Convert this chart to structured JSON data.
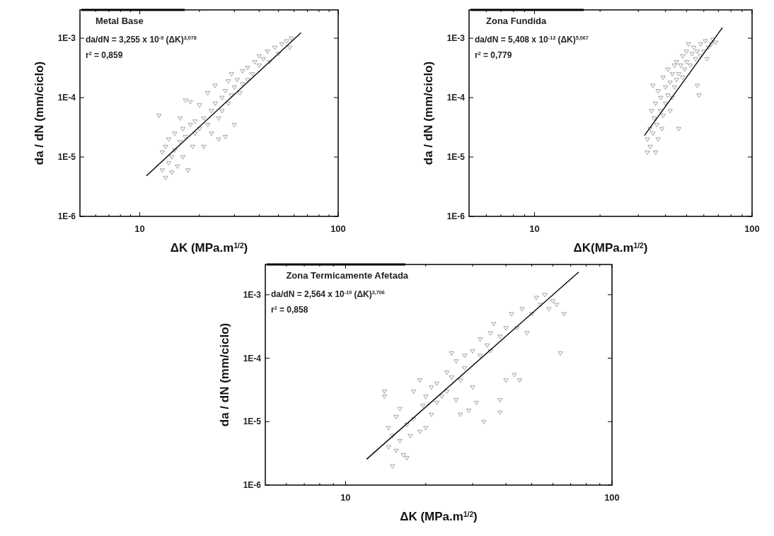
{
  "chart_data": [
    {
      "type": "scatter",
      "title": "Metal Base",
      "xlabel": "ΔK (MPa.m$^{1/2}$)",
      "ylabel": "da / dN (mm/ciclo)",
      "annotations": [
        "da/dN = 3,255 x 10$^{-9}$ (ΔK)$^{3,078}$",
        "r$^{2}$ = 0,859"
      ],
      "log": "xy",
      "marker": "triangle",
      "xlim": [
        5,
        100
      ],
      "xticks": [
        {
          "value": 6,
          "label": null
        },
        {
          "value": 7,
          "label": null
        },
        {
          "value": 8,
          "label": null
        },
        {
          "value": 9,
          "label": null
        },
        {
          "value": 10,
          "label": "10"
        },
        {
          "value": 20,
          "label": null
        },
        {
          "value": 30,
          "label": null
        },
        {
          "value": 40,
          "label": null
        },
        {
          "value": 50,
          "label": null
        },
        {
          "value": 60,
          "label": null
        },
        {
          "value": 70,
          "label": null
        },
        {
          "value": 80,
          "label": null
        },
        {
          "value": 90,
          "label": null
        },
        {
          "value": 100,
          "label": "100"
        }
      ],
      "ylim": [
        1e-06,
        0.003
      ],
      "yticks": [
        {
          "value": 1e-06,
          "label": "1E-6"
        },
        {
          "value": 1e-05,
          "label": "1E-5"
        },
        {
          "value": 0.0001,
          "label": "1E-4"
        },
        {
          "value": 0.001,
          "label": "1E-3"
        }
      ],
      "series": [
        {
          "type": "scatter",
          "color": "#8c8c8c",
          "x": [
            12.5,
            13,
            13,
            13.5,
            13.5,
            14,
            14,
            14.5,
            14.5,
            15,
            15,
            15.5,
            16,
            16,
            16.5,
            16.5,
            17,
            17,
            17.5,
            18,
            18,
            18.5,
            19,
            19,
            20,
            20,
            21,
            21,
            22,
            22,
            23,
            23,
            24,
            24,
            25,
            25,
            26,
            26,
            27,
            27,
            28,
            28,
            29,
            29,
            30,
            30,
            31,
            32,
            33,
            33,
            35,
            35,
            37,
            38,
            40,
            40,
            42,
            44,
            45,
            48,
            50,
            52,
            55,
            57,
            58
          ],
          "values": [
            5e-05,
            1.2e-05,
            6e-06,
            4.5e-06,
            1.5e-05,
            8e-06,
            2e-05,
            1e-05,
            5.5e-06,
            2.5e-05,
            1.3e-05,
            7e-06,
            4.5e-05,
            1.8e-05,
            3e-05,
            1e-05,
            9e-05,
            2.2e-05,
            6e-06,
            8.5e-05,
            3.5e-05,
            1.5e-05,
            4e-05,
            2.5e-05,
            7.5e-05,
            3e-05,
            1.5e-05,
            4.5e-05,
            3.5e-05,
            0.00012,
            6e-05,
            2.5e-05,
            0.00016,
            8e-05,
            4.5e-05,
            2e-05,
            0.0001,
            6e-05,
            0.00013,
            2.2e-05,
            8e-05,
            0.00019,
            0.00025,
            0.00011,
            0.00015,
            3.5e-05,
            0.0002,
            0.00012,
            0.00028,
            0.00017,
            0.00032,
            0.0002,
            0.00025,
            0.0004,
            0.00035,
            0.0005,
            0.00045,
            0.0006,
            0.0004,
            0.0007,
            0.00055,
            0.0008,
            0.0009,
            0.0007,
            0.001
          ]
        },
        {
          "type": "line",
          "color": "#000000",
          "marker": "none",
          "x": [
            10.8,
            65
          ],
          "values": [
            4.8e-06,
            0.00124
          ]
        }
      ]
    },
    {
      "type": "scatter",
      "title": "Zona Fundida",
      "xlabel": "ΔK(MPa.m$^{1/2}$)",
      "ylabel": "da / dN (mm/ciclo)",
      "annotations": [
        "da/dN = 5,408 x 10$^{-13}$ (ΔK)$^{5,067}$",
        "r$^{2}$ = 0,779"
      ],
      "log": "xy",
      "marker": "triangle",
      "xlim": [
        5,
        100
      ],
      "xticks": [
        {
          "value": 6,
          "label": null
        },
        {
          "value": 7,
          "label": null
        },
        {
          "value": 8,
          "label": null
        },
        {
          "value": 9,
          "label": null
        },
        {
          "value": 10,
          "label": "10"
        },
        {
          "value": 20,
          "label": null
        },
        {
          "value": 30,
          "label": null
        },
        {
          "value": 40,
          "label": null
        },
        {
          "value": 50,
          "label": null
        },
        {
          "value": 60,
          "label": null
        },
        {
          "value": 70,
          "label": null
        },
        {
          "value": 80,
          "label": null
        },
        {
          "value": 90,
          "label": null
        },
        {
          "value": 100,
          "label": "100"
        }
      ],
      "ylim": [
        1e-06,
        0.003
      ],
      "yticks": [
        {
          "value": 1e-06,
          "label": "1E-6"
        },
        {
          "value": 1e-05,
          "label": "1E-5"
        },
        {
          "value": 0.0001,
          "label": "1E-4"
        },
        {
          "value": 0.001,
          "label": "1E-3"
        }
      ],
      "series": [
        {
          "type": "scatter",
          "color": "#8c8c8c",
          "x": [
            33,
            33,
            34,
            34,
            34.5,
            35,
            35,
            35.5,
            36,
            36,
            36.5,
            37,
            37,
            38,
            38,
            38.5,
            39,
            39,
            40,
            40,
            41,
            41,
            42,
            42,
            43,
            43,
            44,
            44,
            45,
            45,
            46,
            46,
            47,
            48,
            48,
            49,
            50,
            50,
            51,
            52,
            53,
            54,
            55,
            56,
            56,
            57,
            58,
            58,
            60,
            61,
            62,
            63,
            65,
            66,
            68
          ],
          "values": [
            1.2e-05,
            2e-05,
            1.5e-05,
            3e-05,
            6e-05,
            0.00016,
            2.5e-05,
            4.5e-05,
            1.2e-05,
            8e-05,
            3.5e-05,
            0.00013,
            2e-05,
            6e-05,
            0.0001,
            3e-05,
            0.00022,
            5e-05,
            0.00015,
            8e-05,
            0.0003,
            0.00011,
            0.00018,
            6e-05,
            0.00025,
            0.0001,
            0.00035,
            0.00015,
            0.0002,
            0.0004,
            0.00025,
            3e-05,
            0.00035,
            0.0005,
            0.00022,
            0.0003,
            0.0006,
            0.0004,
            0.0008,
            0.00035,
            0.00055,
            0.0007,
            0.00045,
            0.00016,
            0.0006,
            0.00011,
            0.0008,
            0.0005,
            0.0006,
            0.0009,
            0.00045,
            0.0007,
            0.0008,
            0.00095,
            0.00085
          ]
        },
        {
          "type": "line",
          "color": "#000000",
          "marker": "none",
          "x": [
            32,
            73
          ],
          "values": [
            2.3e-05,
            0.0015
          ]
        }
      ]
    },
    {
      "type": "scatter",
      "title": "Zona Termicamente Afetada",
      "xlabel": "ΔK (MPa.m$^{1/2}$)",
      "ylabel": "da / dN (mm/ciclo)",
      "annotations": [
        "da/dN = 2,564 x 10$^{-10}$ (ΔK)$^{3,706}$",
        "r$^{2}$ = 0,858"
      ],
      "log": "xy",
      "marker": "triangle",
      "xlim": [
        5,
        100
      ],
      "xticks": [
        {
          "value": 6,
          "label": null
        },
        {
          "value": 7,
          "label": null
        },
        {
          "value": 8,
          "label": null
        },
        {
          "value": 9,
          "label": null
        },
        {
          "value": 10,
          "label": "10"
        },
        {
          "value": 20,
          "label": null
        },
        {
          "value": 30,
          "label": null
        },
        {
          "value": 40,
          "label": null
        },
        {
          "value": 50,
          "label": null
        },
        {
          "value": 60,
          "label": null
        },
        {
          "value": 70,
          "label": null
        },
        {
          "value": 80,
          "label": null
        },
        {
          "value": 90,
          "label": null
        },
        {
          "value": 100,
          "label": "100"
        }
      ],
      "ylim": [
        1e-06,
        0.003
      ],
      "yticks": [
        {
          "value": 1e-06,
          "label": "1E-6"
        },
        {
          "value": 1e-05,
          "label": "1E-5"
        },
        {
          "value": 0.0001,
          "label": "1E-4"
        },
        {
          "value": 0.001,
          "label": "1E-3"
        }
      ],
      "series": [
        {
          "type": "scatter",
          "color": "#8c8c8c",
          "x": [
            14,
            14,
            14.5,
            14.5,
            15,
            15,
            15.5,
            15.5,
            16,
            16,
            16.5,
            17,
            17,
            17.5,
            18,
            18,
            19,
            19,
            19.5,
            20,
            20,
            21,
            21,
            22,
            22,
            23,
            24,
            24,
            25,
            25,
            26,
            26,
            27,
            27,
            28,
            28,
            29,
            30,
            30,
            31,
            32,
            32,
            33,
            34,
            35,
            35,
            36,
            38,
            38,
            38,
            40,
            40,
            42,
            43,
            44,
            45,
            46,
            48,
            50,
            52,
            54,
            56,
            58,
            60,
            62,
            64,
            66
          ],
          "values": [
            3e-05,
            2.5e-05,
            8e-06,
            4e-06,
            2e-06,
            6e-06,
            1.2e-05,
            3.5e-06,
            1.6e-05,
            5e-06,
            3e-06,
            9e-06,
            2.7e-06,
            6e-06,
            3e-05,
            1.1e-05,
            7e-06,
            4.5e-05,
            1.8e-05,
            2.5e-05,
            8e-06,
            3.5e-05,
            1.3e-05,
            4e-05,
            2e-05,
            2.5e-05,
            6e-05,
            3e-05,
            0.00012,
            5e-05,
            9e-05,
            2.2e-05,
            4.5e-05,
            1.3e-05,
            0.00011,
            7e-05,
            1.5e-05,
            0.00013,
            3.5e-05,
            2e-05,
            0.0002,
            0.00011,
            1e-05,
            0.00016,
            0.00025,
            0.00013,
            0.00035,
            0.00022,
            1.4e-05,
            2.2e-05,
            0.0003,
            4.5e-05,
            0.0005,
            5.5e-05,
            0.0003,
            4.5e-05,
            0.0006,
            0.00025,
            0.0005,
            0.0009,
            0.0007,
            0.001,
            0.0006,
            0.0008,
            0.0007,
            0.00012,
            0.0005
          ]
        },
        {
          "type": "line",
          "color": "#000000",
          "marker": "none",
          "x": [
            12,
            75
          ],
          "values": [
            2.56e-06,
            0.00228
          ]
        }
      ]
    }
  ]
}
